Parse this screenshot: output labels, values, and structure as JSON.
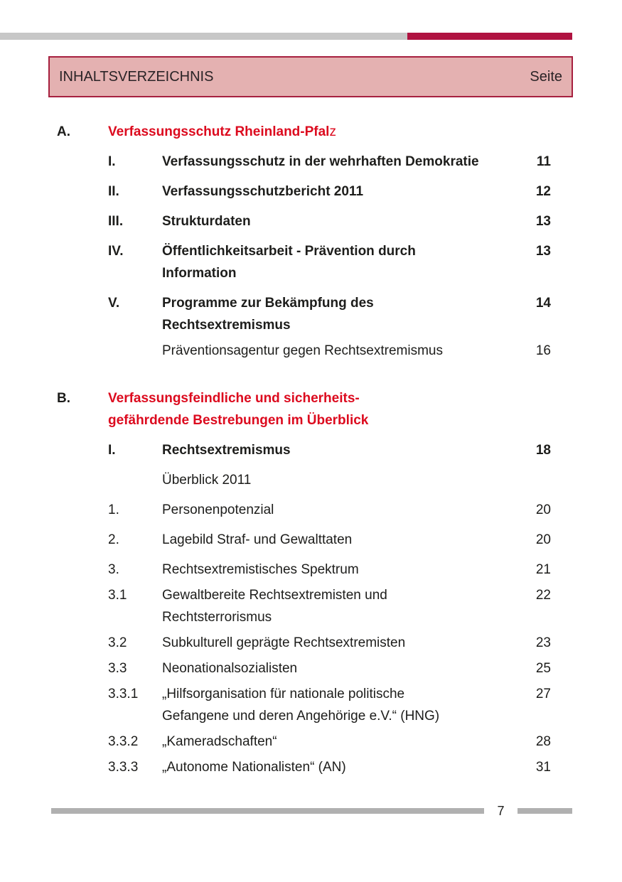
{
  "colors": {
    "accent_red": "#dc0a1e",
    "crimson": "#b01341",
    "box_border": "#a7203f",
    "pink_bg": "#e4b1b1",
    "gray_bar": "#c7c7c7",
    "gray_bar_dark": "#b0b0b0",
    "ink": "#1d1d1b"
  },
  "header": {
    "title": "INHALTSVERZEICHNIS",
    "page_column_label": "Seite"
  },
  "footer": {
    "page_number": "7"
  },
  "toc": {
    "sections": [
      {
        "id": "a",
        "label": "A.",
        "title_lines": [
          "Verfassungsschutz Rheinland-Pfal"
        ],
        "title_regular_suffix": "z",
        "items": [
          {
            "num": "I.",
            "lines": [
              "Verfassungsschutz in der wehrhaften Demokratie"
            ],
            "page": "11",
            "bold": true,
            "tight": false
          },
          {
            "num": "II.",
            "lines": [
              "Verfassungsschutzbericht 2011"
            ],
            "page": "12",
            "bold": true,
            "tight": false
          },
          {
            "num": "III.",
            "lines": [
              "Strukturdaten"
            ],
            "page": "13",
            "bold": true,
            "tight": false
          },
          {
            "num": "IV.",
            "lines": [
              "Öffentlichkeitsarbeit - Prävention durch",
              "Information"
            ],
            "page": "13",
            "bold": true,
            "tight": false
          },
          {
            "num": "V.",
            "lines": [
              "Programme zur Bekämpfung des",
              "Rechtsextremismus"
            ],
            "page": "14",
            "bold": true,
            "tight": true
          },
          {
            "num": "",
            "lines": [
              "Präventionsagentur gegen Rechtsextremismus"
            ],
            "page": "16",
            "bold": false,
            "tight": false
          }
        ]
      },
      {
        "id": "b",
        "label": "B.",
        "title_lines": [
          "Verfassungsfeindliche und sicherheits-",
          "gefährdende Bestrebungen im Überblick"
        ],
        "title_regular_suffix": "",
        "items": [
          {
            "num": "I.",
            "lines": [
              "Rechtsextremismus"
            ],
            "page": "18",
            "bold": true,
            "tight": false
          },
          {
            "num": "",
            "lines": [
              "Überblick 2011"
            ],
            "page": "",
            "bold": false,
            "tight": false
          },
          {
            "num": "1.",
            "lines": [
              "Personenpotenzial"
            ],
            "page": "20",
            "bold": false,
            "tight": false
          },
          {
            "num": "2.",
            "lines": [
              "Lagebild Straf- und Gewalttaten"
            ],
            "page": "20",
            "bold": false,
            "tight": false
          },
          {
            "num": "3.",
            "lines": [
              "Rechtsextremistisches Spektrum"
            ],
            "page": "21",
            "bold": false,
            "tight": true
          },
          {
            "num": "3.1",
            "lines": [
              "Gewaltbereite Rechtsextremisten und",
              "Rechtsterrorismus"
            ],
            "page": "22",
            "bold": false,
            "tight": true
          },
          {
            "num": "3.2",
            "lines": [
              "Subkulturell geprägte Rechtsextremisten"
            ],
            "page": "23",
            "bold": false,
            "tight": true
          },
          {
            "num": "3.3",
            "lines": [
              "Neonationalsozialisten"
            ],
            "page": "25",
            "bold": false,
            "tight": true
          },
          {
            "num": "3.3.1",
            "lines": [
              "„Hilfsorganisation für nationale politische",
              "Gefangene und deren Angehörige e.V.“ (HNG)"
            ],
            "page": "27",
            "bold": false,
            "tight": true
          },
          {
            "num": "3.3.2",
            "lines": [
              "„Kameradschaften“"
            ],
            "page": "28",
            "bold": false,
            "tight": true
          },
          {
            "num": "3.3.3",
            "lines": [
              "„Autonome Nationalisten“ (AN)"
            ],
            "page": "31",
            "bold": false,
            "tight": false
          }
        ]
      }
    ]
  }
}
